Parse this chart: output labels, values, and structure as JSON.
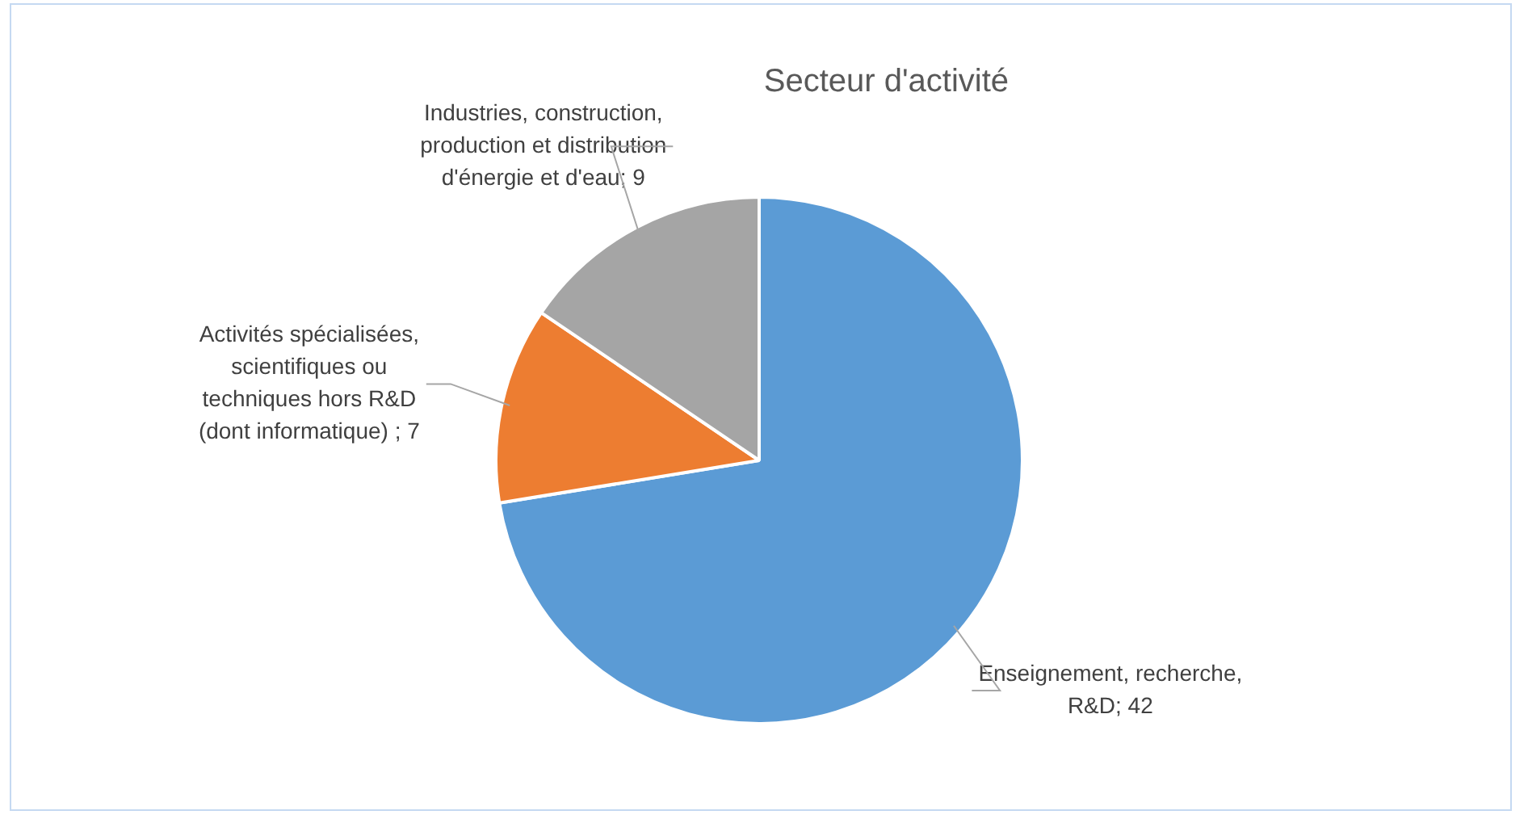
{
  "chart_data": {
    "type": "pie",
    "title": "Secteur d'activité",
    "categories": [
      "Enseignement, recherche, R&D",
      "Activités spécialisées, scientifiques ou techniques hors R&D (dont informatique)",
      "Industries, construction, production et distribution d'énergie et d'eau"
    ],
    "value_labels": [
      "; 42",
      " ; 7",
      "; 9"
    ],
    "values": [
      42,
      7,
      9
    ],
    "colors": [
      "#5b9bd5",
      "#ed7d31",
      "#a5a5a5"
    ],
    "data_labels": true,
    "legend": false
  }
}
